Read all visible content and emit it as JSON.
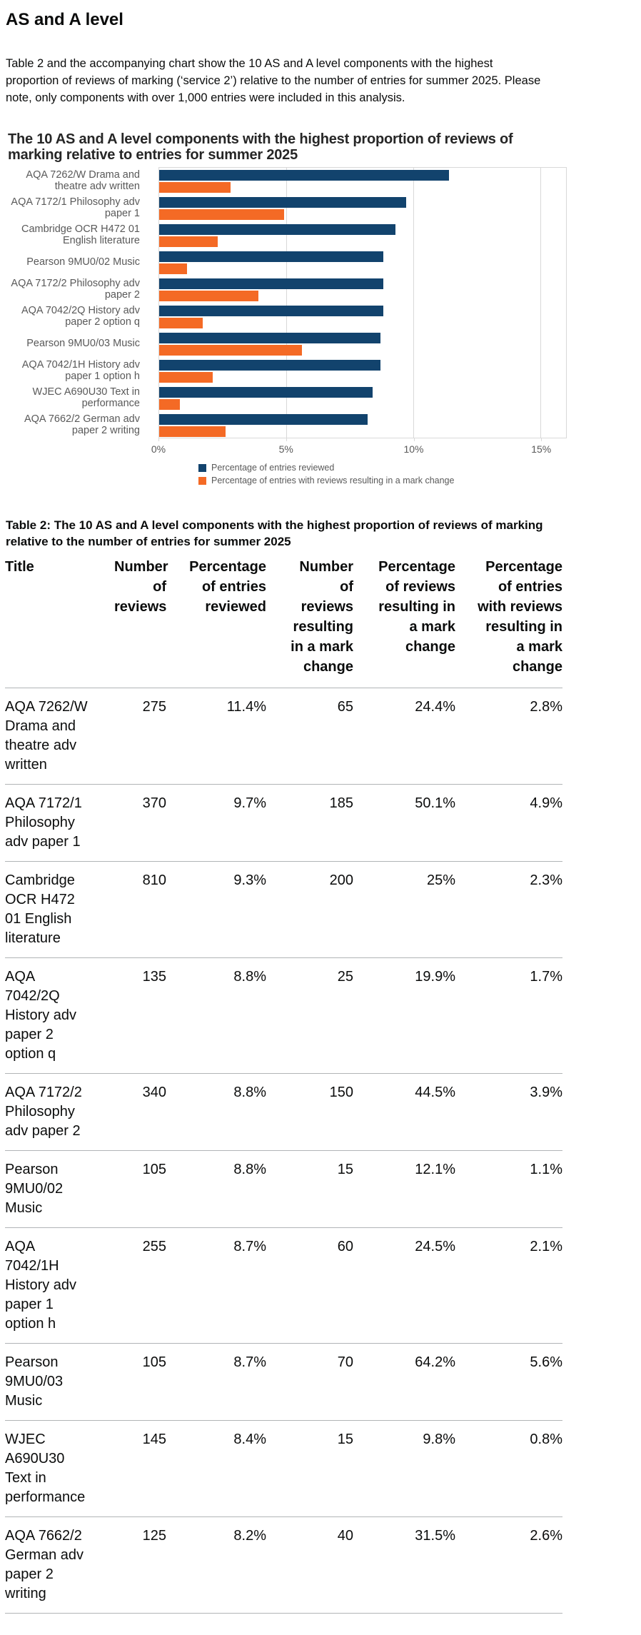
{
  "page": {
    "heading": "AS and A level",
    "intro": "Table 2 and the accompanying chart show the 10 AS and A level components with the highest proportion of reviews of marking (‘service 2’) relative to the number of entries for summer 2025. Please note, only components with over 1,000 entries were included in this analysis."
  },
  "chart_data": {
    "type": "bar",
    "orientation": "horizontal",
    "title": "The 10 AS and A level components with the highest proportion of reviews of marking relative to entries for summer 2025",
    "categories": [
      "AQA 7262/W Drama and theatre adv written",
      "AQA 7172/1 Philosophy adv paper 1",
      "Cambridge OCR H472 01 English literature",
      "Pearson 9MU0/02 Music",
      "AQA 7172/2 Philosophy adv paper 2",
      "AQA 7042/2Q History adv paper 2 option q",
      "Pearson 9MU0/03 Music",
      "AQA 7042/1H History adv paper 1 option h",
      "WJEC A690U30 Text in performance",
      "AQA 7662/2 German adv paper 2 writing"
    ],
    "series": [
      {
        "name": "Percentage of entries reviewed",
        "color": "#12436D",
        "values": [
          11.4,
          9.7,
          9.3,
          8.8,
          8.8,
          8.8,
          8.7,
          8.7,
          8.4,
          8.2
        ]
      },
      {
        "name": "Percentage of entries with reviews resulting in a mark change",
        "color": "#F46A25",
        "values": [
          2.8,
          4.9,
          2.3,
          1.1,
          3.9,
          1.7,
          5.6,
          2.1,
          0.8,
          2.6
        ]
      }
    ],
    "xlabel": "",
    "ylabel": "",
    "x_ticks": [
      "0%",
      "5%",
      "10%",
      "15%"
    ],
    "x_tick_values": [
      0,
      5,
      10,
      15
    ],
    "xlim": [
      0,
      16
    ],
    "grid": true,
    "gridline_color": "#d9d9d9",
    "legend_position": "bottom"
  },
  "table": {
    "title": "Table 2: The 10 AS and A level components with the highest proportion of reviews of marking relative to the number of entries for summer 2025",
    "columns": [
      "Title",
      "Number of reviews",
      "Percentage of entries reviewed",
      "Number of reviews resulting in a mark change",
      "Percentage of reviews resulting in a mark change",
      "Percentage of entries with reviews resulting in a mark change"
    ],
    "rows": [
      [
        "AQA 7262/W Drama and theatre adv written",
        "275",
        "11.4%",
        "65",
        "24.4%",
        "2.8%"
      ],
      [
        "AQA 7172/1 Philosophy adv paper 1",
        "370",
        "9.7%",
        "185",
        "50.1%",
        "4.9%"
      ],
      [
        "Cambridge OCR H472 01 English literature",
        "810",
        "9.3%",
        "200",
        "25%",
        "2.3%"
      ],
      [
        "AQA 7042/2Q History adv paper 2 option q",
        "135",
        "8.8%",
        "25",
        "19.9%",
        "1.7%"
      ],
      [
        "AQA 7172/2 Philosophy adv paper 2",
        "340",
        "8.8%",
        "150",
        "44.5%",
        "3.9%"
      ],
      [
        "Pearson 9MU0/02 Music",
        "105",
        "8.8%",
        "15",
        "12.1%",
        "1.1%"
      ],
      [
        "AQA 7042/1H History adv paper 1 option h",
        "255",
        "8.7%",
        "60",
        "24.5%",
        "2.1%"
      ],
      [
        "Pearson 9MU0/03 Music",
        "105",
        "8.7%",
        "70",
        "64.2%",
        "5.6%"
      ],
      [
        "WJEC A690U30 Text in performance",
        "145",
        "8.4%",
        "15",
        "9.8%",
        "0.8%"
      ],
      [
        "AQA 7662/2 German adv paper 2 writing",
        "125",
        "8.2%",
        "40",
        "31.5%",
        "2.6%"
      ]
    ]
  }
}
